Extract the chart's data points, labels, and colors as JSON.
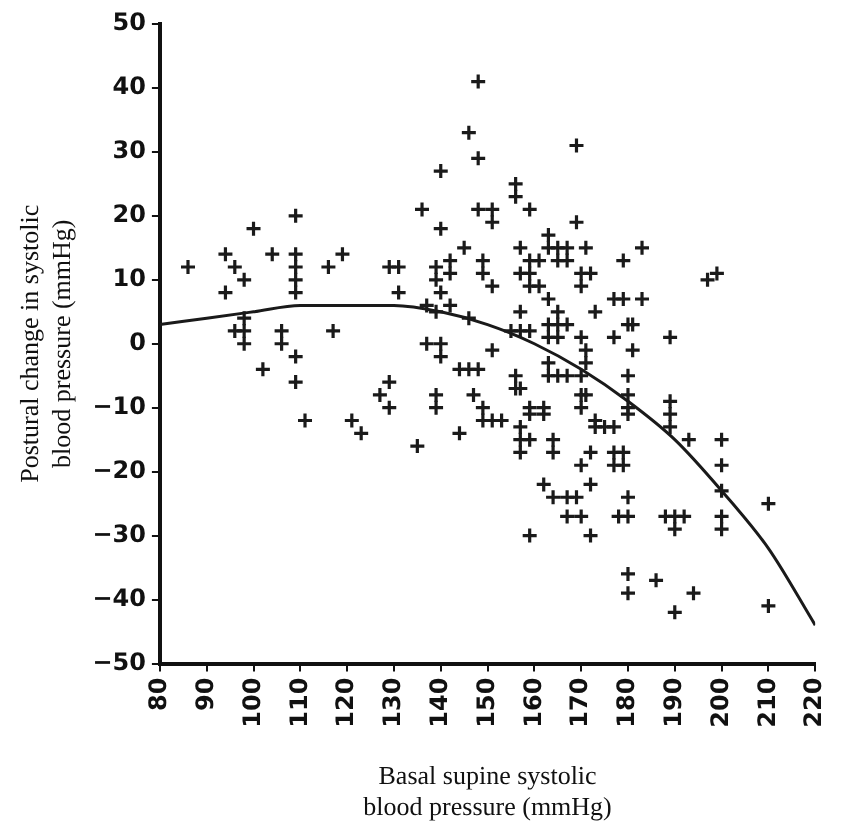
{
  "chart_data": {
    "type": "scatter",
    "xlabel": [
      "Basal supine systolic",
      "blood pressure (mmHg)"
    ],
    "ylabel": [
      "Postural change in systolic",
      "blood pressure (mmHg)"
    ],
    "xlim": [
      80,
      220
    ],
    "xticks": [
      80,
      90,
      100,
      110,
      120,
      130,
      140,
      150,
      160,
      170,
      180,
      190,
      200,
      210,
      220
    ],
    "ylim": [
      -50,
      50
    ],
    "yticks": [
      -50,
      -40,
      -30,
      -20,
      -10,
      0,
      10,
      20,
      30,
      40,
      50
    ],
    "grid": false,
    "legend": false,
    "marker": "cross",
    "series": [
      {
        "type": "scatter",
        "color": "#1a1a1a",
        "x": [
          86,
          94,
          96,
          98,
          94,
          100,
          104,
          109,
          109,
          109,
          109,
          109,
          116,
          119,
          129,
          131,
          131,
          136,
          140,
          140,
          139,
          139,
          140,
          137,
          139,
          148,
          146,
          148,
          169,
          156,
          156,
          159,
          148,
          151,
          151,
          169,
          163,
          163,
          165,
          167,
          165,
          167,
          171,
          145,
          142,
          142,
          149,
          149,
          151,
          142,
          157,
          157,
          159,
          159,
          159,
          161,
          161,
          170,
          170,
          172,
          163,
          165,
          173,
          157,
          179,
          183,
          177,
          179,
          183,
          197,
          199,
          146,
          96,
          98,
          98,
          98,
          102,
          106,
          106,
          109,
          109,
          111,
          117,
          121,
          123,
          127,
          129,
          129,
          135,
          137,
          139,
          139,
          140,
          140,
          155,
          157,
          159,
          163,
          165,
          167,
          163,
          165,
          170,
          177,
          180,
          181,
          181,
          189,
          171,
          171,
          163,
          163,
          165,
          167,
          144,
          146,
          148,
          151,
          147,
          149,
          149,
          151,
          153,
          144,
          156,
          156,
          157,
          159,
          162,
          159,
          162,
          170,
          170,
          170,
          171,
          180,
          180,
          180,
          180,
          173,
          175,
          177,
          173,
          189,
          189,
          189,
          193,
          200,
          157,
          157,
          157,
          159,
          164,
          164,
          172,
          170,
          172,
          177,
          179,
          177,
          179,
          200,
          162,
          164,
          167,
          169,
          180,
          200,
          210,
          167,
          170,
          178,
          180,
          188,
          190,
          192,
          190,
          200,
          200,
          159,
          172,
          180,
          180,
          186,
          190,
          194,
          210
        ],
        "values": [
          12,
          14,
          12,
          10,
          8,
          18,
          14,
          20,
          14,
          12,
          10,
          8,
          12,
          14,
          12,
          12,
          8,
          21,
          27,
          18,
          12,
          10,
          8,
          6,
          5,
          41,
          33,
          29,
          31,
          25,
          23,
          21,
          21,
          21,
          19,
          19,
          17,
          15,
          15,
          15,
          13,
          13,
          15,
          15,
          13,
          11,
          13,
          11,
          9,
          6,
          15,
          11,
          13,
          11,
          9,
          13,
          9,
          11,
          9,
          11,
          7,
          5,
          5,
          5,
          13,
          15,
          7,
          7,
          7,
          10,
          11,
          4,
          2,
          2,
          4,
          0,
          -4,
          2,
          0,
          -2,
          -6,
          -12,
          2,
          -12,
          -14,
          -8,
          -6,
          -10,
          -16,
          0,
          -8,
          -10,
          0,
          -2,
          2,
          2,
          2,
          3,
          3,
          3,
          1,
          1,
          1,
          1,
          3,
          3,
          -1,
          1,
          -1,
          -3,
          -3,
          -5,
          -5,
          -5,
          -4,
          -4,
          -4,
          -1,
          -8,
          -10,
          -12,
          -12,
          -12,
          -14,
          -5,
          -7,
          -7,
          -10,
          -10,
          -11,
          -11,
          -5,
          -8,
          -10,
          -8,
          -5,
          -8,
          -10,
          -11,
          -12,
          -13,
          -13,
          -13,
          -9,
          -11,
          -13,
          -15,
          -15,
          -13,
          -15,
          -17,
          -15,
          -15,
          -17,
          -17,
          -19,
          -22,
          -17,
          -17,
          -19,
          -19,
          -19,
          -22,
          -24,
          -24,
          -24,
          -24,
          -23,
          -25,
          -27,
          -27,
          -27,
          -27,
          -27,
          -27,
          -27,
          -29,
          -27,
          -29,
          -30,
          -30,
          -36,
          -39,
          -37,
          -42,
          -39,
          -41
        ]
      },
      {
        "type": "line",
        "color": "#1a1a1a",
        "marker": "none",
        "x": [
          80,
          90,
          100,
          110,
          120,
          130,
          140,
          150,
          160,
          170,
          180,
          190,
          200,
          210,
          220
        ],
        "values": [
          3,
          4,
          5,
          6,
          6,
          6,
          5,
          3,
          0,
          -4,
          -9,
          -15,
          -23,
          -32,
          -44
        ]
      }
    ]
  }
}
